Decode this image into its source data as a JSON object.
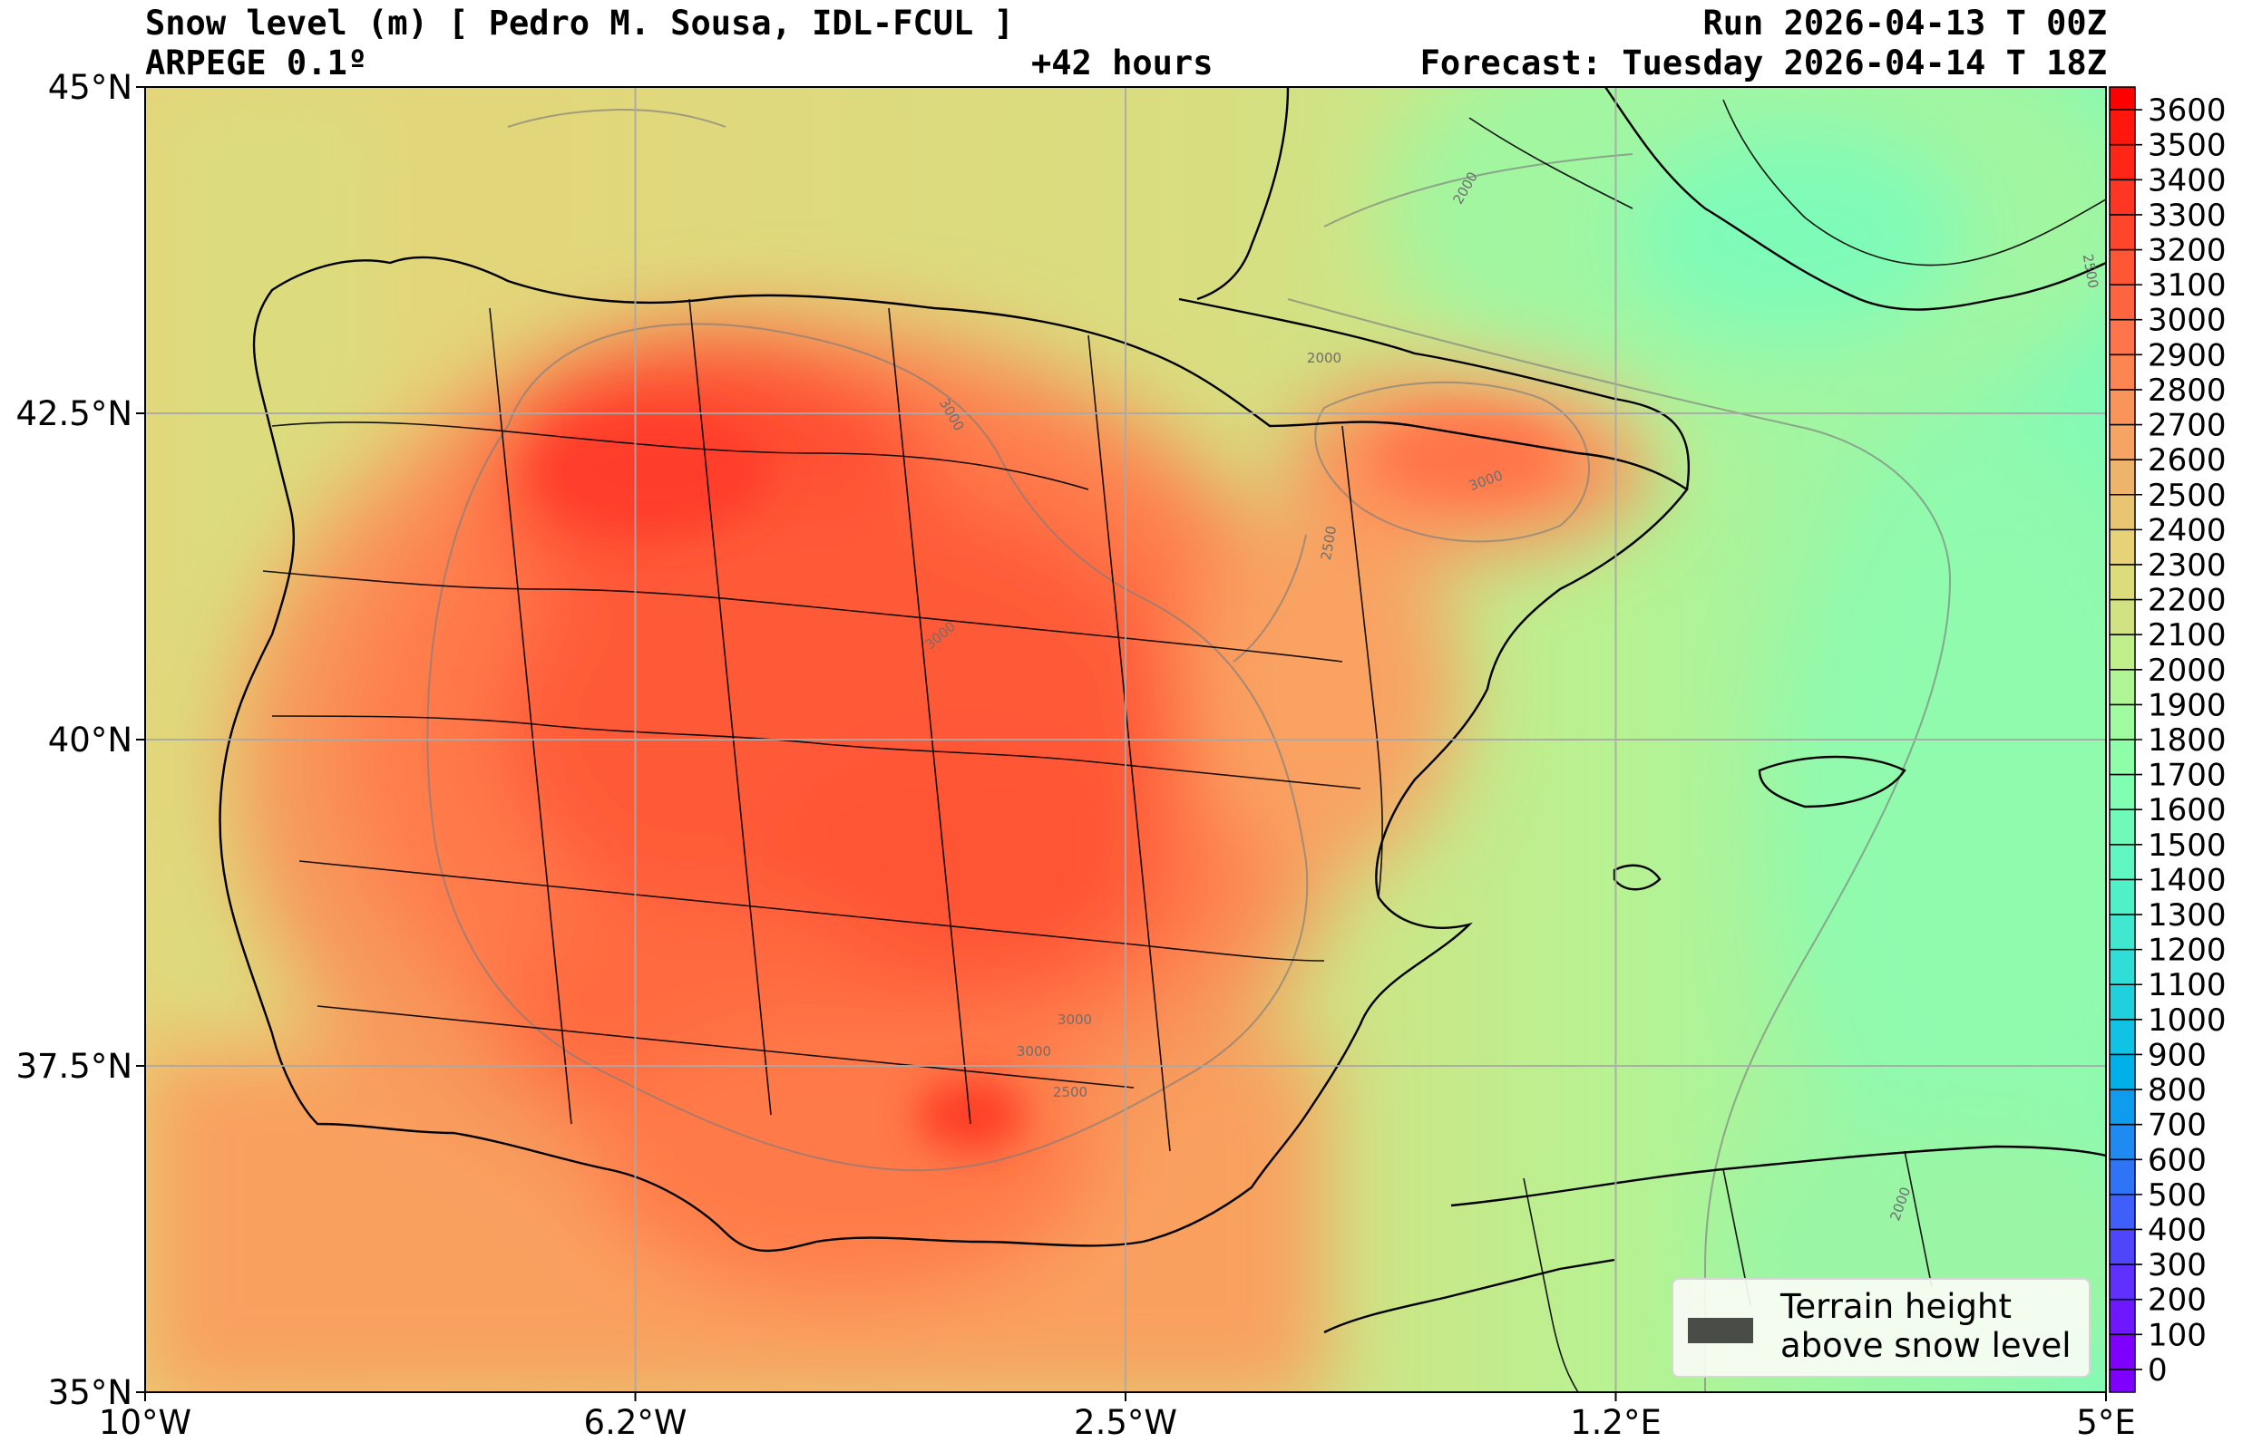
{
  "header": {
    "title": "Snow level (m) [ Pedro M. Sousa, IDL-FCUL ]",
    "run": "Run 2026-04-13 T 00Z",
    "model": "ARPEGE 0.1º",
    "lead_time": "+42 hours",
    "forecast": "Forecast: Tuesday 2026-04-14 T 18Z"
  },
  "map": {
    "lat_ticks": [
      "45°N",
      "42.5°N",
      "40°N",
      "37.5°N",
      "35°N"
    ],
    "lon_ticks": [
      "10°W",
      "6.2°W",
      "2.5°W",
      "1.2°E",
      "5°E"
    ],
    "contour_labels": [
      "3000",
      "3000",
      "2500",
      "2000",
      "3000",
      "3000",
      "2000",
      "2500",
      "2000",
      "3000",
      "2500"
    ]
  },
  "colorbar": {
    "ticks": [
      "0",
      "100",
      "200",
      "300",
      "400",
      "500",
      "600",
      "700",
      "800",
      "900",
      "1000",
      "1100",
      "1200",
      "1300",
      "1400",
      "1500",
      "1600",
      "1700",
      "1800",
      "1900",
      "2000",
      "2100",
      "2200",
      "2300",
      "2400",
      "2500",
      "2600",
      "2700",
      "2800",
      "2900",
      "3000",
      "3100",
      "3200",
      "3300",
      "3400",
      "3500",
      "3600"
    ],
    "colors": [
      "#7f00ff",
      "#6f18ff",
      "#5f30fe",
      "#4f46fc",
      "#3f5efa",
      "#2f74f6",
      "#1f8af2",
      "#0f9cee",
      "#00b0e9",
      "#10c2e3",
      "#20d0dd",
      "#30ddd7",
      "#40e8d0",
      "#50f0c9",
      "#60f6c1",
      "#70fab9",
      "#80feb2",
      "#8ffea9",
      "#a0faa0",
      "#aff596",
      "#c0ee8b",
      "#d0e282",
      "#dddc7d",
      "#e7d277",
      "#e9c573",
      "#eeb46b",
      "#f5a463",
      "#f9955b",
      "#fd8552",
      "#ff744a",
      "#ff6440",
      "#ff5636",
      "#ff462d",
      "#ff3623",
      "#ff2618",
      "#ff160c",
      "#ff0000"
    ]
  },
  "legend": {
    "label": "Terrain height\nabove snow level",
    "swatch_color": "#4a4d47"
  }
}
